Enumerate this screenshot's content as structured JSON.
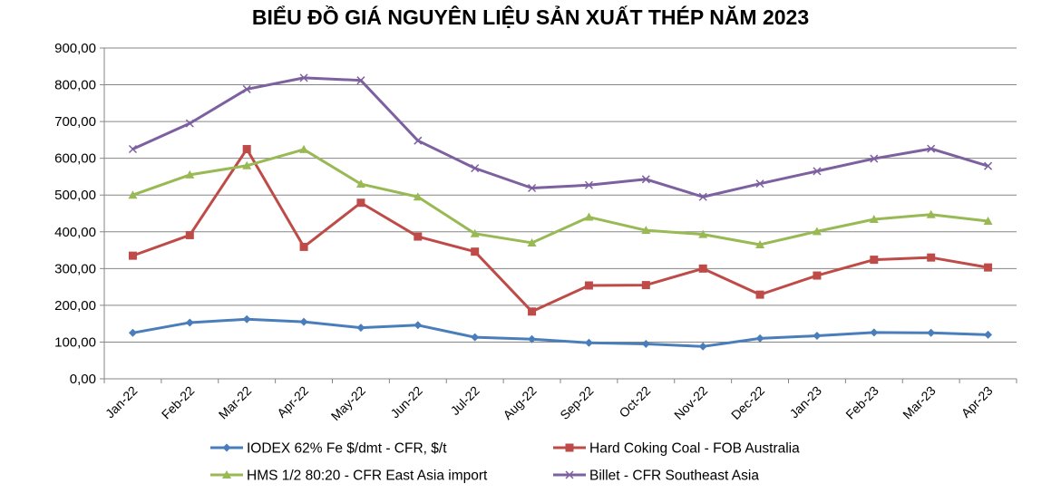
{
  "chart_data": {
    "type": "line",
    "title": "BIỂU ĐỒ GIÁ NGUYÊN LIỆU SẢN XUẤT THÉP NĂM 2023",
    "xlabel": "",
    "ylabel": "",
    "ylim": [
      0,
      900
    ],
    "y_ticks": [
      "0,00",
      "100,00",
      "200,00",
      "300,00",
      "400,00",
      "500,00",
      "600,00",
      "700,00",
      "800,00",
      "900,00"
    ],
    "grid": true,
    "legend_position": "bottom",
    "categories": [
      "Jan-22",
      "Feb-22",
      "Mar-22",
      "Apr-22",
      "May-22",
      "Jun-22",
      "Jul-22",
      "Aug-22",
      "Sep-22",
      "Oct-22",
      "Nov-22",
      "Dec-22",
      "Jan-23",
      "Feb-23",
      "Mar-23",
      "Apr-23"
    ],
    "series": [
      {
        "name": "IODEX 62% Fe $/dmt - CFR, $/t",
        "color": "#4a7ebb",
        "marker": "diamond",
        "values": [
          125,
          153,
          162,
          155,
          139,
          146,
          113,
          108,
          98,
          95,
          88,
          110,
          117,
          126,
          125,
          120
        ]
      },
      {
        "name": "Hard Coking Coal - FOB Australia",
        "color": "#be4b48",
        "marker": "square",
        "values": [
          335,
          391,
          625,
          359,
          479,
          387,
          346,
          183,
          254,
          255,
          300,
          229,
          281,
          324,
          330,
          303
        ]
      },
      {
        "name": "HMS 1/2 80:20 - CFR East Asia import",
        "color": "#98b954",
        "marker": "triangle",
        "values": [
          500,
          555,
          580,
          624,
          530,
          495,
          395,
          370,
          440,
          404,
          393,
          365,
          401,
          434,
          447,
          429
        ]
      },
      {
        "name": "Billet - CFR Southeast Asia",
        "color": "#7d60a0",
        "marker": "x",
        "values": [
          625,
          695,
          788,
          819,
          812,
          648,
          573,
          519,
          527,
          543,
          495,
          531,
          565,
          599,
          626,
          579
        ]
      }
    ]
  }
}
